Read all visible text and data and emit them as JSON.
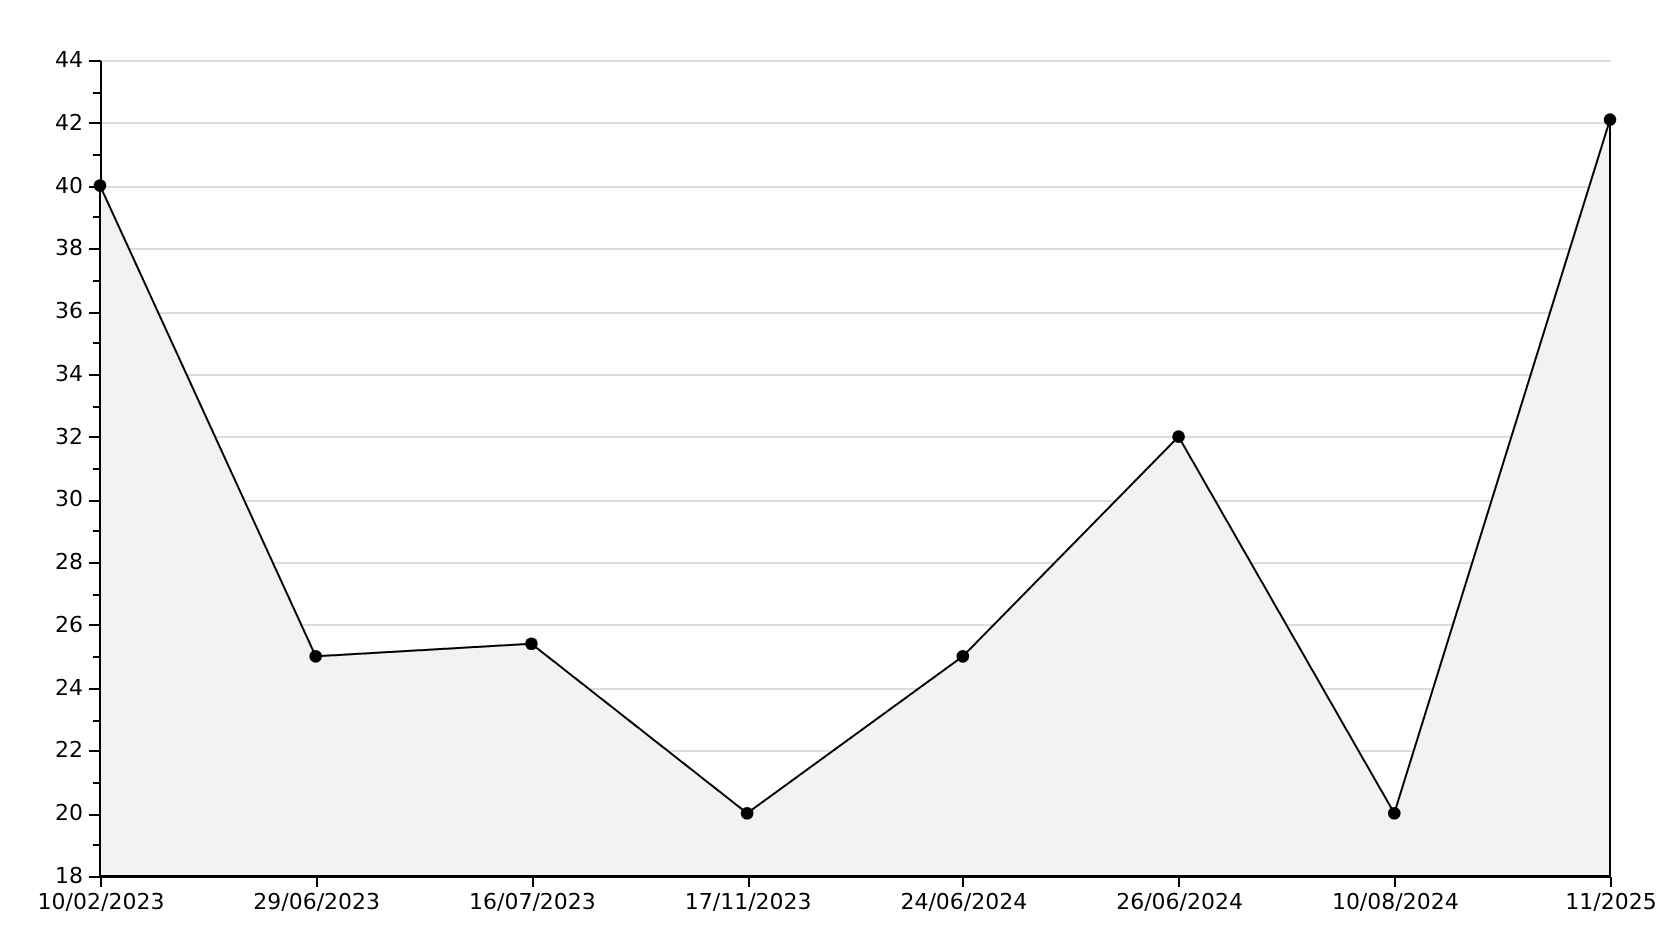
{
  "chart_data": {
    "type": "area",
    "categories": [
      "10/02/2023",
      "29/06/2023",
      "16/07/2023",
      "17/11/2023",
      "24/06/2024",
      "26/06/2024",
      "10/08/2024",
      "11/2025"
    ],
    "series": [
      {
        "color": "#000000",
        "values": [
          40,
          25,
          25.4,
          20,
          25,
          32,
          20,
          42.1
        ]
      }
    ],
    "ylim": [
      18,
      44
    ],
    "yticks": [
      18,
      {
        "value": 19,
        "label": null
      },
      20,
      {
        "value": 21,
        "label": null
      },
      22,
      {
        "value": 23,
        "label": null
      },
      24,
      {
        "value": 25,
        "label": null
      },
      26,
      {
        "value": 27,
        "label": null
      },
      28,
      {
        "value": 29,
        "label": null
      },
      30,
      {
        "value": 31,
        "label": null
      },
      32,
      {
        "value": 33,
        "label": null
      },
      34,
      {
        "value": 35,
        "label": null
      },
      36,
      {
        "value": 37,
        "label": null
      },
      38,
      {
        "value": 39,
        "label": null
      },
      40,
      {
        "value": 41,
        "label": null
      },
      42,
      {
        "value": 43,
        "label": null
      },
      44
    ],
    "grid": "y",
    "marker": "circle"
  }
}
